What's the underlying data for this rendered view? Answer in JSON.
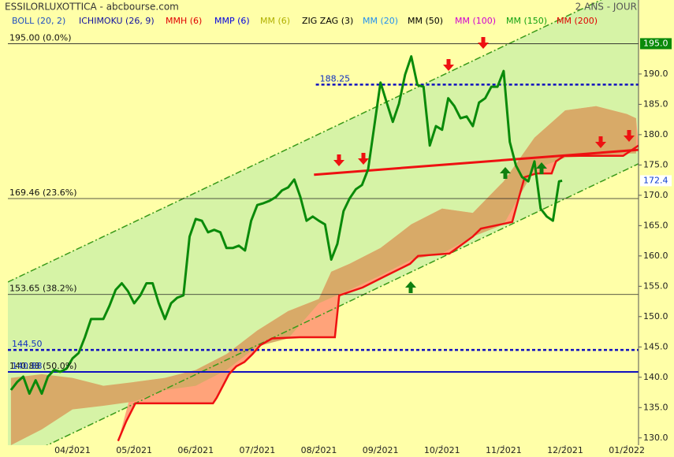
{
  "chart_data": {
    "type": "line",
    "title": "ESSILORLUXOTTICA - abcbourse.com",
    "period": "2 ANS - JOUR",
    "indicators": [
      {
        "name": "BOLL (20, 2)",
        "color": "#2050c0"
      },
      {
        "name": "ICHIMOKU (26, 9)",
        "color": "#1010a0"
      },
      {
        "name": "MMH (6)",
        "color": "#e00000"
      },
      {
        "name": "MMP (6)",
        "color": "#0000e0"
      },
      {
        "name": "MM (6)",
        "color": "#b0b000"
      },
      {
        "name": "ZIG ZAG (3)",
        "color": "#000000"
      },
      {
        "name": "MM (20)",
        "color": "#2090f0"
      },
      {
        "name": "MM (50)",
        "color": "#000000"
      },
      {
        "name": "MM (100)",
        "color": "#d000d0"
      },
      {
        "name": "MM (150)",
        "color": "#10a010"
      },
      {
        "name": "MM (200)",
        "color": "#e00000"
      }
    ],
    "xlim": [
      2.95,
      13.19
    ],
    "xticks": [
      {
        "value": 4,
        "label": "04/2021"
      },
      {
        "value": 5,
        "label": "05/2021"
      },
      {
        "value": 6,
        "label": "06/2021"
      },
      {
        "value": 7,
        "label": "07/2021"
      },
      {
        "value": 8,
        "label": "08/2021"
      },
      {
        "value": 9,
        "label": "09/2021"
      },
      {
        "value": 10,
        "label": "10/2021"
      },
      {
        "value": 11,
        "label": "11/2021"
      },
      {
        "value": 12,
        "label": "12/2021"
      },
      {
        "value": 13,
        "label": "01/2022"
      }
    ],
    "ylim": [
      128.8,
      202.2
    ],
    "yticks": [
      {
        "value": 130,
        "label": "130.0"
      },
      {
        "value": 135,
        "label": "135.0"
      },
      {
        "value": 140,
        "label": "140.0"
      },
      {
        "value": 145,
        "label": "145.0"
      },
      {
        "value": 150,
        "label": "150.0"
      },
      {
        "value": 155,
        "label": "155.0"
      },
      {
        "value": 160,
        "label": "160.0"
      },
      {
        "value": 165,
        "label": "165.0"
      },
      {
        "value": 170,
        "label": "170.0"
      },
      {
        "value": 175,
        "label": "175.0"
      },
      {
        "value": 180,
        "label": "180.0"
      },
      {
        "value": 185,
        "label": "185.0"
      },
      {
        "value": 190,
        "label": "190.0"
      }
    ],
    "price": {
      "color": "#0a8a0a",
      "x": [
        3.0,
        3.1,
        3.2,
        3.3,
        3.4,
        3.5,
        3.6,
        3.7,
        3.8,
        3.9,
        4.0,
        4.1,
        4.2,
        4.3,
        4.4,
        4.5,
        4.6,
        4.7,
        4.8,
        4.9,
        5.0,
        5.1,
        5.2,
        5.3,
        5.4,
        5.5,
        5.6,
        5.7,
        5.8,
        5.9,
        6.0,
        6.1,
        6.2,
        6.3,
        6.4,
        6.5,
        6.6,
        6.7,
        6.8,
        6.9,
        7.0,
        7.1,
        7.2,
        7.3,
        7.4,
        7.5,
        7.6,
        7.7,
        7.8,
        7.9,
        8.0,
        8.1,
        8.2,
        8.3,
        8.4,
        8.5,
        8.6,
        8.7,
        8.8,
        8.9,
        9.0,
        9.1,
        9.2,
        9.3,
        9.4,
        9.5,
        9.6,
        9.7,
        9.8,
        9.9,
        10.0,
        10.1,
        10.2,
        10.3,
        10.4,
        10.5,
        10.6,
        10.7,
        10.8,
        10.9,
        11.0,
        11.1,
        11.2,
        11.3,
        11.4,
        11.5,
        11.6,
        11.7,
        11.8,
        11.9,
        11.95
      ],
      "values": [
        137.9,
        139.2,
        140.1,
        137.3,
        139.5,
        137.3,
        140.1,
        141.2,
        140.9,
        141.4,
        143.1,
        144.0,
        146.6,
        149.6,
        149.6,
        149.6,
        151.8,
        154.4,
        155.5,
        154.2,
        152.2,
        153.5,
        155.5,
        155.5,
        152.2,
        149.6,
        152.2,
        153.1,
        153.5,
        163.2,
        166.1,
        165.8,
        163.9,
        164.3,
        163.9,
        161.3,
        161.3,
        161.7,
        160.9,
        165.8,
        168.4,
        168.7,
        169.1,
        169.7,
        170.8,
        171.3,
        172.6,
        169.7,
        165.8,
        166.5,
        165.8,
        165.2,
        159.4,
        162.0,
        167.4,
        169.5,
        171.0,
        171.7,
        174.3,
        181.4,
        188.6,
        185.3,
        182.1,
        185.1,
        189.9,
        192.9,
        188.2,
        187.9,
        178.2,
        181.4,
        180.8,
        186.0,
        184.7,
        182.7,
        183.0,
        181.4,
        185.3,
        186.0,
        187.9,
        187.9,
        190.5,
        178.8,
        174.9,
        173.0,
        172.3,
        175.6,
        167.8,
        166.5,
        165.8,
        172.3,
        172.4
      ]
    },
    "cloud": {
      "color": "#d8aa68",
      "x": [
        3.0,
        3.5,
        4.0,
        4.5,
        5.0,
        5.5,
        6.0,
        6.5,
        7.0,
        7.5,
        8.0,
        8.2,
        8.5,
        9.0,
        9.5,
        10.0,
        10.5,
        11.0,
        11.5,
        12.0,
        12.5,
        13.0,
        13.15
      ],
      "upper": [
        139.9,
        140.5,
        139.9,
        138.6,
        139.2,
        139.9,
        141.2,
        143.8,
        147.7,
        150.9,
        152.9,
        157.4,
        158.7,
        161.3,
        165.2,
        167.8,
        167.1,
        172.3,
        179.5,
        184.0,
        184.7,
        183.4,
        182.7
      ],
      "lower": [
        128.8,
        131.4,
        134.7,
        135.3,
        136.0,
        137.9,
        138.6,
        141.2,
        145.1,
        146.4,
        152.2,
        153.1,
        154.4,
        156.8,
        159.4,
        160.4,
        163.2,
        165.2,
        174.3,
        176.2,
        176.5,
        176.9,
        176.9
      ]
    },
    "mmh": {
      "color": "#ee1111",
      "fill": "#ffa37a",
      "x": [
        4.74,
        4.87,
        5.02,
        6.28,
        6.34,
        6.54,
        6.66,
        6.79,
        6.92,
        7.05,
        7.24,
        7.69,
        8.26,
        8.33,
        8.71,
        9.1,
        9.48,
        9.61,
        10.12,
        10.5,
        10.63,
        11.14,
        11.25,
        11.34,
        11.53,
        11.78,
        11.85,
        11.98,
        12.94,
        13.19
      ],
      "values": [
        129.5,
        132.7,
        135.7,
        135.7,
        136.6,
        140.5,
        141.8,
        142.5,
        143.8,
        145.3,
        146.4,
        146.6,
        146.6,
        153.5,
        154.8,
        156.8,
        158.7,
        160.0,
        160.4,
        163.2,
        164.5,
        165.6,
        169.7,
        173.0,
        173.6,
        173.6,
        175.6,
        176.5,
        176.5,
        178.2
      ]
    },
    "trend_line": {
      "color": "#ee1111",
      "x": [
        7.92,
        13.19
      ],
      "values": [
        173.4,
        177.5
      ]
    },
    "channel": {
      "color": "#3a9a1a",
      "fill": "#d6f3a6",
      "upper": {
        "x": [
          2.95,
          12.1
        ],
        "values": [
          155.7,
          199.9
        ]
      },
      "lower": {
        "x": [
          3.59,
          13.19
        ],
        "values": [
          128.8,
          175.2
        ]
      }
    },
    "levels": [
      {
        "value": 195.0,
        "label": "195.00  (0.0%)"
      },
      {
        "value": 169.46,
        "label": "169.46  (23.6%)"
      },
      {
        "value": 153.65,
        "label": "153.65  (38.2%)"
      },
      {
        "value": 140.88,
        "label": "140.88  (50.0%)"
      }
    ],
    "blue_lines": [
      {
        "value": 188.25,
        "label": "188.25",
        "from": 7.95,
        "style": "dotted"
      },
      {
        "value": 144.5,
        "label": "144.50",
        "from": 2.95,
        "style": "dotted"
      },
      {
        "value": 140.88,
        "label": "140.88",
        "from": 2.95,
        "style": "solid"
      }
    ],
    "axis_tags": [
      {
        "value": 195.0,
        "label": "195.0",
        "color": "#0a8a0a",
        "text": "#ffffff"
      },
      {
        "value": 172.4,
        "label": "172.4",
        "color": "#ffffff",
        "text": "#1040d0"
      }
    ]
  }
}
